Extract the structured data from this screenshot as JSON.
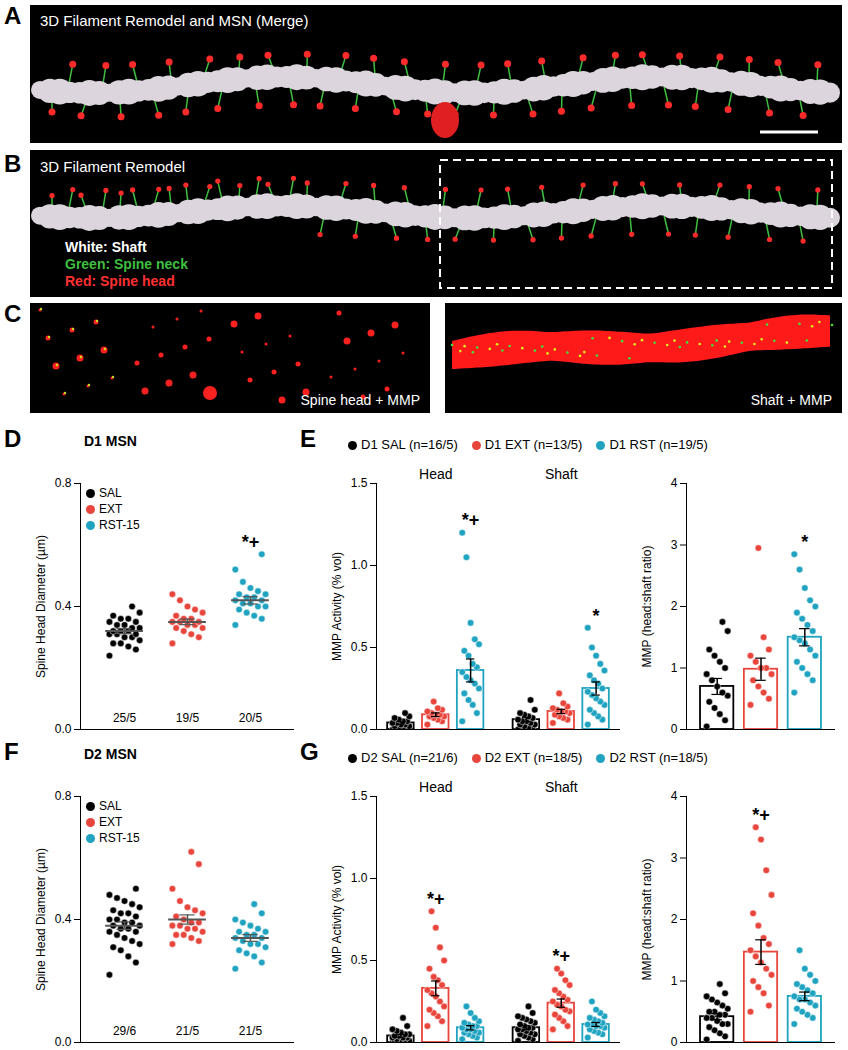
{
  "panels": [
    {
      "letter": "A",
      "title": "3D Filament Remodel and MSN (Merge)"
    },
    {
      "letter": "B",
      "title": "3D Filament Remodel",
      "key": [
        "White: Shaft",
        "Green: Spine neck",
        "Red: Spine head"
      ]
    },
    {
      "letter": "C",
      "captions": [
        "Spine head + MMP",
        "Shaft + MMP"
      ]
    }
  ],
  "chart_data": [
    {
      "panel": "D",
      "type": "scatter",
      "title": "D1 MSN",
      "y_label": "Spine Head Diameter (µm)",
      "ylim": [
        0,
        0.8
      ],
      "yticks": [
        {
          "value": 0,
          "label": "0.0"
        },
        {
          "value": 0.4,
          "label": "0.4"
        },
        {
          "value": 0.8,
          "label": "0.8"
        }
      ],
      "legend": "top-left",
      "series": [
        {
          "name": "SAL",
          "color": "#000000",
          "n_label": "25/5",
          "mean": 0.32,
          "sem": 0.008,
          "values": [
            0.24,
            0.26,
            0.27,
            0.28,
            0.28,
            0.29,
            0.3,
            0.3,
            0.31,
            0.31,
            0.31,
            0.32,
            0.32,
            0.32,
            0.33,
            0.33,
            0.34,
            0.34,
            0.35,
            0.35,
            0.36,
            0.36,
            0.37,
            0.38,
            0.4
          ]
        },
        {
          "name": "EXT",
          "color": "#e8453c",
          "n_label": "19/5",
          "mean": 0.35,
          "sem": 0.009,
          "values": [
            0.28,
            0.3,
            0.31,
            0.32,
            0.33,
            0.33,
            0.34,
            0.34,
            0.35,
            0.35,
            0.35,
            0.36,
            0.36,
            0.37,
            0.38,
            0.39,
            0.4,
            0.42,
            0.44
          ]
        },
        {
          "name": "RST-15",
          "color": "#1fa3c0",
          "n_label": "20/5",
          "mean": 0.42,
          "sem": 0.012,
          "values": [
            0.34,
            0.36,
            0.37,
            0.38,
            0.39,
            0.4,
            0.4,
            0.41,
            0.41,
            0.42,
            0.42,
            0.43,
            0.43,
            0.44,
            0.44,
            0.45,
            0.46,
            0.48,
            0.52,
            0.57
          ]
        }
      ],
      "annotations": [
        {
          "series": 2,
          "text": "*+"
        }
      ]
    },
    {
      "panel": "E",
      "type": "bar",
      "y_label": "MMP Activity (% vol)",
      "categories": [
        "Head",
        "Shaft"
      ],
      "ylim": [
        0,
        1.5
      ],
      "yticks": [
        {
          "value": 0,
          "label": "0.0"
        },
        {
          "value": 0.5,
          "label": "0.5"
        },
        {
          "value": 1,
          "label": "1.0"
        },
        {
          "value": 1.5,
          "label": "1.5"
        }
      ],
      "legend": "top",
      "series": [
        {
          "name": "D1 SAL (n=16/5)",
          "color": "#000000",
          "means": [
            0.04,
            0.06
          ],
          "sems": [
            0.008,
            0.012
          ],
          "values": [
            [
              0.0,
              0.0,
              0.01,
              0.01,
              0.02,
              0.02,
              0.03,
              0.03,
              0.04,
              0.04,
              0.05,
              0.05,
              0.06,
              0.07,
              0.08,
              0.1
            ],
            [
              0.0,
              0.01,
              0.01,
              0.02,
              0.03,
              0.03,
              0.04,
              0.05,
              0.05,
              0.06,
              0.07,
              0.08,
              0.09,
              0.1,
              0.12,
              0.18
            ]
          ]
        },
        {
          "name": "D1 EXT (n=13/5)",
          "color": "#e8453c",
          "means": [
            0.09,
            0.11
          ],
          "sems": [
            0.011,
            0.013
          ],
          "values": [
            [
              0.03,
              0.05,
              0.06,
              0.07,
              0.08,
              0.08,
              0.09,
              0.09,
              0.1,
              0.11,
              0.12,
              0.13,
              0.17
            ],
            [
              0.04,
              0.06,
              0.07,
              0.08,
              0.09,
              0.1,
              0.11,
              0.11,
              0.12,
              0.13,
              0.14,
              0.16,
              0.22
            ]
          ]
        },
        {
          "name": "D1 RST (n=19/5)",
          "color": "#1fa3c0",
          "means": [
            0.36,
            0.25
          ],
          "sems": [
            0.07,
            0.04
          ],
          "values": [
            [
              0.05,
              0.1,
              0.15,
              0.18,
              0.22,
              0.25,
              0.28,
              0.3,
              0.32,
              0.35,
              0.38,
              0.4,
              0.45,
              0.48,
              0.52,
              0.55,
              0.65,
              1.05,
              1.2
            ],
            [
              0.03,
              0.06,
              0.08,
              0.1,
              0.12,
              0.15,
              0.17,
              0.19,
              0.21,
              0.23,
              0.25,
              0.28,
              0.3,
              0.33,
              0.36,
              0.4,
              0.45,
              0.5,
              0.62
            ]
          ]
        }
      ],
      "annotations": [
        {
          "series": 2,
          "category": 0,
          "text": "*+"
        },
        {
          "series": 2,
          "category": 1,
          "text": "*"
        }
      ]
    },
    {
      "panel": "E",
      "type": "bar",
      "y_label": "MMP (head:shaft ratio)",
      "ylim": [
        0,
        4
      ],
      "yticks": [
        0,
        1,
        2,
        3,
        4
      ],
      "series": [
        {
          "color": "#000000",
          "mean": 0.7,
          "sem": 0.13,
          "values": [
            0.05,
            0.15,
            0.25,
            0.35,
            0.45,
            0.55,
            0.6,
            0.7,
            0.8,
            0.9,
            1.0,
            1.1,
            1.2,
            1.3,
            1.6,
            1.75
          ]
        },
        {
          "color": "#e8453c",
          "mean": 0.98,
          "sem": 0.18,
          "values": [
            0.4,
            0.5,
            0.6,
            0.7,
            0.8,
            0.9,
            1.0,
            1.0,
            1.1,
            1.2,
            1.3,
            1.5,
            2.95
          ]
        },
        {
          "color": "#1fa3c0",
          "mean": 1.5,
          "sem": 0.14,
          "values": [
            0.6,
            0.8,
            0.9,
            1.0,
            1.1,
            1.2,
            1.3,
            1.4,
            1.45,
            1.5,
            1.6,
            1.7,
            1.8,
            1.9,
            2.0,
            2.1,
            2.3,
            2.6,
            2.85
          ]
        }
      ],
      "annotations": [
        {
          "series": 2,
          "text": "*"
        }
      ]
    },
    {
      "panel": "F",
      "type": "scatter",
      "title": "D2 MSN",
      "y_label": "Spine Head Diameter (µm)",
      "ylim": [
        0,
        0.8
      ],
      "yticks": [
        {
          "value": 0,
          "label": "0.0"
        },
        {
          "value": 0.4,
          "label": "0.4"
        },
        {
          "value": 0.8,
          "label": "0.8"
        }
      ],
      "legend": "top-left",
      "series": [
        {
          "name": "SAL",
          "color": "#000000",
          "n_label": "29/6",
          "mean": 0.38,
          "sem": 0.012,
          "values": [
            0.22,
            0.26,
            0.28,
            0.3,
            0.31,
            0.32,
            0.33,
            0.34,
            0.35,
            0.36,
            0.36,
            0.37,
            0.37,
            0.38,
            0.38,
            0.39,
            0.39,
            0.4,
            0.4,
            0.41,
            0.42,
            0.42,
            0.43,
            0.44,
            0.45,
            0.46,
            0.47,
            0.48,
            0.5
          ]
        },
        {
          "name": "EXT",
          "color": "#e8453c",
          "n_label": "21/5",
          "mean": 0.4,
          "sem": 0.015,
          "values": [
            0.32,
            0.33,
            0.34,
            0.35,
            0.35,
            0.36,
            0.37,
            0.37,
            0.38,
            0.38,
            0.39,
            0.39,
            0.4,
            0.41,
            0.42,
            0.43,
            0.44,
            0.46,
            0.5,
            0.58,
            0.62
          ]
        },
        {
          "name": "RST-15",
          "color": "#1fa3c0",
          "n_label": "21/5",
          "mean": 0.34,
          "sem": 0.011,
          "values": [
            0.24,
            0.26,
            0.28,
            0.29,
            0.3,
            0.31,
            0.32,
            0.32,
            0.33,
            0.34,
            0.34,
            0.35,
            0.35,
            0.36,
            0.36,
            0.37,
            0.38,
            0.39,
            0.4,
            0.42,
            0.45
          ]
        }
      ]
    },
    {
      "panel": "G",
      "type": "bar",
      "y_label": "MMP Activity (% vol)",
      "categories": [
        "Head",
        "Shaft"
      ],
      "ylim": [
        0,
        1.5
      ],
      "yticks": [
        {
          "value": 0,
          "label": "0.0"
        },
        {
          "value": 0.5,
          "label": "0.5"
        },
        {
          "value": 1,
          "label": "1.0"
        },
        {
          "value": 1.5,
          "label": "1.5"
        }
      ],
      "legend": "top",
      "series": [
        {
          "name": "D2 SAL (n=21/6)",
          "color": "#000000",
          "means": [
            0.04,
            0.09
          ],
          "sems": [
            0.008,
            0.012
          ],
          "values": [
            [
              0,
              0,
              0,
              0.01,
              0.01,
              0.01,
              0.02,
              0.02,
              0.02,
              0.03,
              0.03,
              0.03,
              0.04,
              0.04,
              0.05,
              0.05,
              0.06,
              0.07,
              0.08,
              0.1,
              0.15
            ],
            [
              0.01,
              0.02,
              0.03,
              0.04,
              0.05,
              0.05,
              0.06,
              0.07,
              0.08,
              0.08,
              0.09,
              0.09,
              0.1,
              0.11,
              0.12,
              0.13,
              0.14,
              0.15,
              0.16,
              0.18,
              0.22
            ]
          ]
        },
        {
          "name": "D2 EXT (n=18/5)",
          "color": "#e8453c",
          "means": [
            0.33,
            0.24
          ],
          "sems": [
            0.045,
            0.025
          ],
          "values": [
            [
              0.1,
              0.13,
              0.16,
              0.18,
              0.2,
              0.22,
              0.25,
              0.28,
              0.3,
              0.32,
              0.35,
              0.38,
              0.4,
              0.45,
              0.5,
              0.58,
              0.7,
              0.8
            ],
            [
              0.08,
              0.1,
              0.13,
              0.15,
              0.17,
              0.19,
              0.2,
              0.22,
              0.23,
              0.25,
              0.26,
              0.28,
              0.3,
              0.32,
              0.35,
              0.38,
              0.42,
              0.45
            ]
          ]
        },
        {
          "name": "D2 RST (n=18/5)",
          "color": "#1fa3c0",
          "means": [
            0.09,
            0.11
          ],
          "sems": [
            0.013,
            0.012
          ],
          "values": [
            [
              0.02,
              0.03,
              0.04,
              0.05,
              0.06,
              0.06,
              0.07,
              0.08,
              0.08,
              0.09,
              0.1,
              0.1,
              0.11,
              0.12,
              0.13,
              0.15,
              0.18,
              0.22
            ],
            [
              0.03,
              0.05,
              0.06,
              0.07,
              0.08,
              0.09,
              0.1,
              0.1,
              0.11,
              0.11,
              0.12,
              0.13,
              0.14,
              0.15,
              0.16,
              0.18,
              0.2,
              0.25
            ]
          ]
        }
      ],
      "annotations": [
        {
          "series": 1,
          "category": 0,
          "text": "*+"
        },
        {
          "series": 1,
          "category": 1,
          "text": "*+"
        }
      ]
    },
    {
      "panel": "G",
      "type": "bar",
      "y_label": "MMP (head:shaft ratio)",
      "ylim": [
        0,
        4
      ],
      "yticks": [
        0,
        1,
        2,
        3,
        4
      ],
      "series": [
        {
          "color": "#000000",
          "mean": 0.42,
          "sem": 0.05,
          "values": [
            0.05,
            0.1,
            0.15,
            0.2,
            0.25,
            0.3,
            0.3,
            0.35,
            0.4,
            0.4,
            0.45,
            0.45,
            0.5,
            0.5,
            0.55,
            0.6,
            0.65,
            0.7,
            0.75,
            0.8,
            0.95
          ]
        },
        {
          "color": "#e8453c",
          "mean": 1.47,
          "sem": 0.2,
          "values": [
            0.5,
            0.6,
            0.8,
            0.9,
            1.0,
            1.1,
            1.2,
            1.3,
            1.4,
            1.5,
            1.6,
            1.7,
            1.9,
            2.1,
            2.4,
            2.8,
            3.3,
            3.5
          ]
        },
        {
          "color": "#1fa3c0",
          "mean": 0.75,
          "sem": 0.07,
          "values": [
            0.3,
            0.4,
            0.45,
            0.5,
            0.55,
            0.6,
            0.65,
            0.7,
            0.7,
            0.75,
            0.8,
            0.85,
            0.9,
            0.95,
            1.0,
            1.1,
            1.2,
            1.5
          ]
        }
      ],
      "annotations": [
        {
          "series": 1,
          "text": "*+"
        }
      ]
    }
  ]
}
